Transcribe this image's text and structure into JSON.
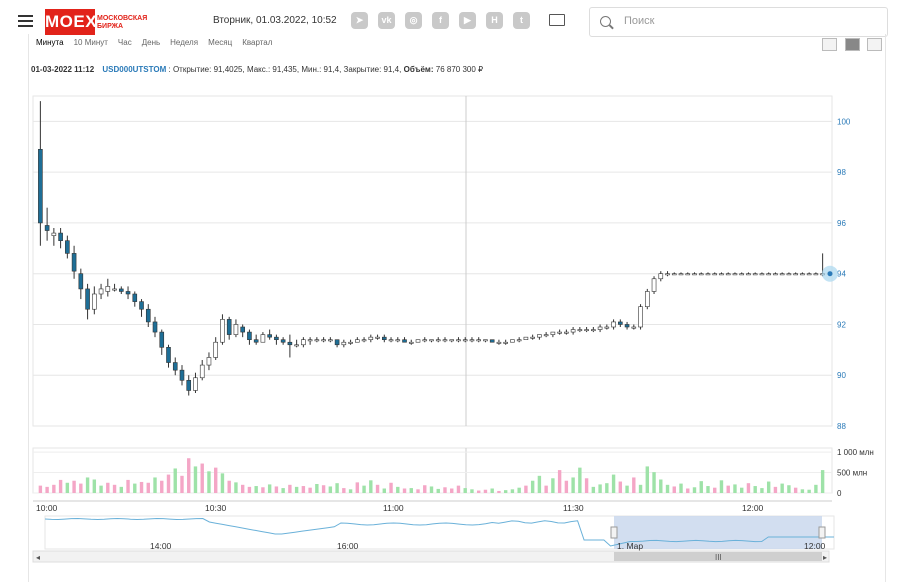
{
  "header": {
    "logo_text": "MOEX",
    "logo_subtitle": "МОСКОВСКАЯ БИРЖА",
    "datetime": "Вторник, 01.03.2022, 10:52",
    "social": [
      {
        "icon": "telegram-icon",
        "glyph": "➤"
      },
      {
        "icon": "vk-icon",
        "glyph": "vk"
      },
      {
        "icon": "instagram-icon",
        "glyph": "◎"
      },
      {
        "icon": "facebook-icon",
        "glyph": "f"
      },
      {
        "icon": "youtube-icon",
        "glyph": "▶"
      },
      {
        "icon": "h-icon",
        "glyph": "H"
      },
      {
        "icon": "twitter-icon",
        "glyph": "t"
      }
    ],
    "search_placeholder": "Поиск"
  },
  "tabs": [
    "Минута",
    "10 Минут",
    "Час",
    "День",
    "Неделя",
    "Месяц",
    "Квартал"
  ],
  "active_tab": "Минута",
  "info": {
    "timestamp": "01-03-2022 11:12",
    "ticker": "USD000UTSTOM",
    "fields": ": Открытие: 91,4025, Макс.: 91,435, Мин.: 91,4, Закрытие: 91,4,",
    "volume_label": "Объём:",
    "volume_value": "76 870 300 ₽"
  },
  "chart_data": {
    "type": "candlestick",
    "ylim": [
      88,
      101
    ],
    "y_ticks": [
      "88",
      "90",
      "92",
      "94",
      "96",
      "98",
      "100"
    ],
    "x_ticks": [
      "10:00",
      "10:30",
      "11:00",
      "11:30",
      "12:00"
    ],
    "volume_ticks": [
      "0",
      "500 млн",
      "1 000 млн"
    ],
    "last_value": 94.0,
    "candles": [
      [
        98.9,
        100.8,
        95.1,
        96.0
      ],
      [
        95.9,
        96.6,
        95.3,
        95.7
      ],
      [
        95.5,
        95.8,
        95.1,
        95.6
      ],
      [
        95.6,
        95.8,
        95.0,
        95.3
      ],
      [
        95.3,
        95.5,
        94.6,
        94.8
      ],
      [
        94.8,
        95.1,
        93.8,
        94.1
      ],
      [
        94.0,
        94.2,
        93.0,
        93.4
      ],
      [
        93.4,
        93.6,
        92.2,
        92.6
      ],
      [
        92.6,
        93.5,
        92.4,
        93.2
      ],
      [
        93.2,
        93.6,
        93.0,
        93.4
      ],
      [
        93.3,
        93.8,
        93.1,
        93.5
      ],
      [
        93.4,
        93.6,
        93.3,
        93.4
      ],
      [
        93.4,
        93.5,
        93.2,
        93.3
      ],
      [
        93.3,
        93.5,
        93.0,
        93.2
      ],
      [
        93.2,
        93.3,
        92.7,
        92.9
      ],
      [
        92.9,
        93.0,
        92.3,
        92.6
      ],
      [
        92.6,
        92.8,
        91.9,
        92.1
      ],
      [
        92.1,
        92.3,
        91.5,
        91.7
      ],
      [
        91.7,
        91.8,
        90.8,
        91.1
      ],
      [
        91.1,
        91.2,
        90.3,
        90.5
      ],
      [
        90.5,
        90.7,
        90.0,
        90.2
      ],
      [
        90.2,
        90.4,
        89.6,
        89.8
      ],
      [
        89.8,
        90.0,
        89.2,
        89.4
      ],
      [
        89.4,
        90.1,
        89.3,
        89.9
      ],
      [
        89.9,
        90.6,
        89.8,
        90.4
      ],
      [
        90.4,
        90.9,
        90.2,
        90.7
      ],
      [
        90.7,
        91.5,
        90.6,
        91.3
      ],
      [
        91.3,
        92.4,
        91.2,
        92.2
      ],
      [
        92.2,
        92.3,
        91.4,
        91.6
      ],
      [
        91.6,
        92.2,
        91.5,
        92.0
      ],
      [
        91.9,
        92.0,
        91.5,
        91.7
      ],
      [
        91.7,
        91.8,
        91.2,
        91.4
      ],
      [
        91.4,
        91.6,
        91.2,
        91.3
      ],
      [
        91.3,
        91.7,
        91.3,
        91.6
      ],
      [
        91.6,
        91.8,
        91.4,
        91.5
      ],
      [
        91.5,
        91.6,
        91.2,
        91.4
      ],
      [
        91.4,
        91.5,
        91.2,
        91.3
      ],
      [
        91.3,
        91.6,
        90.7,
        91.2
      ],
      [
        91.2,
        91.4,
        91.1,
        91.2
      ],
      [
        91.2,
        91.5,
        91.1,
        91.4
      ],
      [
        91.4,
        91.5,
        91.2,
        91.4
      ],
      [
        91.4,
        91.5,
        91.3,
        91.4
      ],
      [
        91.4,
        91.5,
        91.3,
        91.4
      ],
      [
        91.4,
        91.5,
        91.3,
        91.4
      ],
      [
        91.4,
        91.4,
        91.1,
        91.2
      ],
      [
        91.2,
        91.4,
        91.1,
        91.3
      ],
      [
        91.3,
        91.4,
        91.2,
        91.3
      ],
      [
        91.3,
        91.5,
        91.3,
        91.4
      ],
      [
        91.4,
        91.5,
        91.3,
        91.4
      ],
      [
        91.4,
        91.6,
        91.3,
        91.5
      ],
      [
        91.5,
        91.6,
        91.4,
        91.5
      ],
      [
        91.5,
        91.6,
        91.3,
        91.4
      ],
      [
        91.4,
        91.5,
        91.3,
        91.4
      ],
      [
        91.4,
        91.5,
        91.3,
        91.4
      ],
      [
        91.4,
        91.5,
        91.3,
        91.3
      ],
      [
        91.3,
        91.4,
        91.2,
        91.3
      ],
      [
        91.3,
        91.4,
        91.3,
        91.4
      ],
      [
        91.4,
        91.5,
        91.3,
        91.4
      ],
      [
        91.4,
        91.4,
        91.3,
        91.4
      ],
      [
        91.4,
        91.5,
        91.3,
        91.4
      ],
      [
        91.4,
        91.5,
        91.3,
        91.4
      ],
      [
        91.4,
        91.4,
        91.3,
        91.4
      ],
      [
        91.4,
        91.5,
        91.3,
        91.4
      ],
      [
        91.4,
        91.5,
        91.3,
        91.4
      ],
      [
        91.4,
        91.5,
        91.3,
        91.4
      ],
      [
        91.4,
        91.5,
        91.3,
        91.4
      ],
      [
        91.4,
        91.4,
        91.3,
        91.4
      ],
      [
        91.4,
        91.4,
        91.3,
        91.3
      ],
      [
        91.3,
        91.4,
        91.2,
        91.3
      ],
      [
        91.3,
        91.4,
        91.2,
        91.3
      ],
      [
        91.3,
        91.4,
        91.3,
        91.4
      ],
      [
        91.4,
        91.5,
        91.3,
        91.4
      ],
      [
        91.4,
        91.5,
        91.4,
        91.5
      ],
      [
        91.5,
        91.6,
        91.4,
        91.5
      ],
      [
        91.5,
        91.6,
        91.4,
        91.6
      ],
      [
        91.6,
        91.7,
        91.5,
        91.6
      ],
      [
        91.6,
        91.7,
        91.5,
        91.7
      ],
      [
        91.7,
        91.8,
        91.6,
        91.7
      ],
      [
        91.7,
        91.8,
        91.6,
        91.7
      ],
      [
        91.7,
        91.9,
        91.6,
        91.8
      ],
      [
        91.8,
        91.9,
        91.7,
        91.8
      ],
      [
        91.8,
        91.9,
        91.7,
        91.8
      ],
      [
        91.8,
        91.9,
        91.7,
        91.8
      ],
      [
        91.8,
        92.0,
        91.7,
        91.9
      ],
      [
        91.9,
        92.0,
        91.8,
        91.9
      ],
      [
        91.9,
        92.2,
        91.8,
        92.1
      ],
      [
        92.1,
        92.2,
        91.9,
        92.0
      ],
      [
        92.0,
        92.1,
        91.8,
        91.9
      ],
      [
        91.9,
        92.0,
        91.8,
        91.9
      ],
      [
        91.9,
        92.8,
        91.8,
        92.7
      ],
      [
        92.7,
        93.4,
        92.6,
        93.3
      ],
      [
        93.3,
        93.9,
        93.2,
        93.8
      ],
      [
        93.8,
        94.1,
        93.7,
        94.0
      ],
      [
        94.0,
        94.1,
        93.9,
        94.0
      ],
      [
        94.0,
        94.05,
        93.95,
        94.0
      ],
      [
        94.0,
        94.05,
        93.95,
        94.0
      ],
      [
        94.0,
        94.05,
        93.95,
        94.0
      ],
      [
        94.0,
        94.05,
        93.95,
        94.0
      ],
      [
        94.0,
        94.05,
        93.95,
        94.0
      ],
      [
        94.0,
        94.05,
        93.95,
        94.0
      ],
      [
        94.0,
        94.05,
        93.95,
        94.0
      ],
      [
        94.0,
        94.05,
        93.95,
        94.0
      ],
      [
        94.0,
        94.05,
        93.95,
        94.0
      ],
      [
        94.0,
        94.05,
        93.95,
        94.0
      ],
      [
        94.0,
        94.05,
        93.95,
        94.0
      ],
      [
        94.0,
        94.05,
        93.95,
        94.0
      ],
      [
        94.0,
        94.05,
        93.95,
        94.0
      ],
      [
        94.0,
        94.05,
        93.95,
        94.0
      ],
      [
        94.0,
        94.05,
        93.95,
        94.0
      ],
      [
        94.0,
        94.05,
        93.95,
        94.0
      ],
      [
        94.0,
        94.05,
        93.95,
        94.0
      ],
      [
        94.0,
        94.05,
        93.95,
        94.0
      ],
      [
        94.0,
        94.05,
        93.95,
        94.0
      ],
      [
        94.0,
        94.05,
        93.95,
        94.0
      ],
      [
        94.0,
        94.05,
        93.95,
        94.0
      ],
      [
        94.0,
        94.05,
        93.95,
        94.0
      ],
      [
        94.0,
        94.8,
        93.9,
        94.0
      ]
    ],
    "volume_max": 1100,
    "volumes": [
      [
        180,
        "r"
      ],
      [
        150,
        "r"
      ],
      [
        200,
        "r"
      ],
      [
        320,
        "r"
      ],
      [
        250,
        "g"
      ],
      [
        300,
        "r"
      ],
      [
        230,
        "r"
      ],
      [
        380,
        "g"
      ],
      [
        330,
        "g"
      ],
      [
        180,
        "g"
      ],
      [
        250,
        "r"
      ],
      [
        200,
        "r"
      ],
      [
        150,
        "g"
      ],
      [
        320,
        "r"
      ],
      [
        230,
        "g"
      ],
      [
        270,
        "r"
      ],
      [
        250,
        "r"
      ],
      [
        380,
        "g"
      ],
      [
        300,
        "r"
      ],
      [
        450,
        "r"
      ],
      [
        600,
        "g"
      ],
      [
        420,
        "r"
      ],
      [
        850,
        "r"
      ],
      [
        650,
        "g"
      ],
      [
        720,
        "r"
      ],
      [
        530,
        "g"
      ],
      [
        620,
        "r"
      ],
      [
        480,
        "g"
      ],
      [
        300,
        "r"
      ],
      [
        260,
        "g"
      ],
      [
        200,
        "r"
      ],
      [
        150,
        "r"
      ],
      [
        170,
        "g"
      ],
      [
        140,
        "r"
      ],
      [
        210,
        "g"
      ],
      [
        160,
        "r"
      ],
      [
        120,
        "g"
      ],
      [
        200,
        "r"
      ],
      [
        150,
        "g"
      ],
      [
        170,
        "r"
      ],
      [
        130,
        "r"
      ],
      [
        220,
        "g"
      ],
      [
        190,
        "r"
      ],
      [
        160,
        "g"
      ],
      [
        240,
        "g"
      ],
      [
        120,
        "r"
      ],
      [
        90,
        "g"
      ],
      [
        260,
        "r"
      ],
      [
        180,
        "g"
      ],
      [
        310,
        "g"
      ],
      [
        200,
        "r"
      ],
      [
        110,
        "g"
      ],
      [
        250,
        "r"
      ],
      [
        150,
        "g"
      ],
      [
        110,
        "r"
      ],
      [
        120,
        "g"
      ],
      [
        90,
        "r"
      ],
      [
        190,
        "r"
      ],
      [
        160,
        "g"
      ],
      [
        100,
        "g"
      ],
      [
        140,
        "r"
      ],
      [
        110,
        "r"
      ],
      [
        180,
        "r"
      ],
      [
        120,
        "g"
      ],
      [
        90,
        "g"
      ],
      [
        60,
        "r"
      ],
      [
        80,
        "r"
      ],
      [
        110,
        "g"
      ],
      [
        50,
        "r"
      ],
      [
        70,
        "g"
      ],
      [
        90,
        "g"
      ],
      [
        130,
        "g"
      ],
      [
        180,
        "r"
      ],
      [
        300,
        "g"
      ],
      [
        420,
        "g"
      ],
      [
        180,
        "r"
      ],
      [
        360,
        "g"
      ],
      [
        560,
        "r"
      ],
      [
        300,
        "r"
      ],
      [
        380,
        "g"
      ],
      [
        620,
        "g"
      ],
      [
        360,
        "r"
      ],
      [
        150,
        "g"
      ],
      [
        210,
        "g"
      ],
      [
        240,
        "g"
      ],
      [
        450,
        "g"
      ],
      [
        280,
        "r"
      ],
      [
        180,
        "g"
      ],
      [
        380,
        "r"
      ],
      [
        200,
        "g"
      ],
      [
        650,
        "g"
      ],
      [
        510,
        "g"
      ],
      [
        330,
        "g"
      ],
      [
        200,
        "g"
      ],
      [
        160,
        "r"
      ],
      [
        230,
        "g"
      ],
      [
        110,
        "r"
      ],
      [
        140,
        "g"
      ],
      [
        290,
        "g"
      ],
      [
        170,
        "g"
      ],
      [
        130,
        "r"
      ],
      [
        310,
        "g"
      ],
      [
        180,
        "r"
      ],
      [
        210,
        "g"
      ],
      [
        130,
        "g"
      ],
      [
        240,
        "r"
      ],
      [
        170,
        "g"
      ],
      [
        120,
        "g"
      ],
      [
        280,
        "g"
      ],
      [
        150,
        "r"
      ],
      [
        230,
        "g"
      ],
      [
        190,
        "g"
      ],
      [
        130,
        "r"
      ],
      [
        90,
        "g"
      ],
      [
        80,
        "g"
      ],
      [
        200,
        "g"
      ],
      [
        560,
        "g"
      ]
    ],
    "navigator": {
      "x_ticks": [
        "14:00",
        "16:00",
        "1. Мар",
        "12:00"
      ]
    }
  }
}
